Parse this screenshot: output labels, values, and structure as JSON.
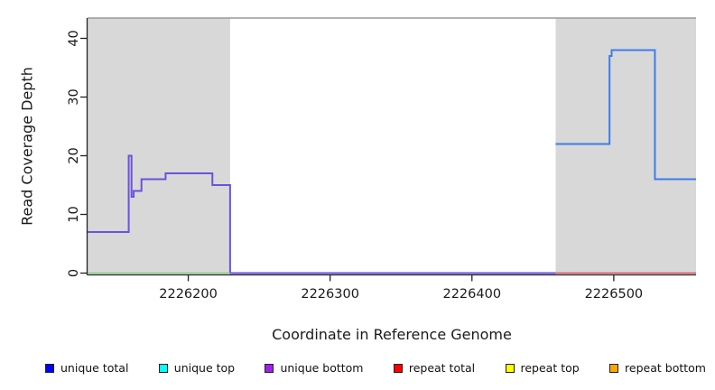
{
  "figure": {
    "xlabel": "Coordinate in Reference Genome",
    "ylabel": "Read Coverage Depth"
  },
  "chart_data": {
    "type": "line",
    "subtype": "step-coverage-plot",
    "title": "",
    "xlabel": "Coordinate in Reference Genome",
    "ylabel": "Read Coverage Depth",
    "xlim": [
      2226129,
      2226558
    ],
    "ylim": [
      0,
      43.5
    ],
    "x_ticks": [
      2226200,
      2226300,
      2226400,
      2226500
    ],
    "y_ticks": [
      0,
      10,
      20,
      30,
      40
    ],
    "grid": false,
    "axis_color": "#222222",
    "top_border_color": "#999999",
    "background_regions": [
      {
        "name": "left-shaded-region",
        "x0": 2226129,
        "x1": 2226229.5,
        "fill": "#d8d8d8"
      },
      {
        "name": "right-shaded-region",
        "x0": 2226459,
        "x1": 2226558,
        "fill": "#d8d8d8"
      }
    ],
    "series": [
      {
        "name": "unique-bottom-coverage-step",
        "color": "#6b52de",
        "width": 2,
        "steps": [
          [
            2226129,
            7
          ],
          [
            2226158,
            20
          ],
          [
            2226160,
            13
          ],
          [
            2226161.5,
            14
          ],
          [
            2226167,
            16
          ],
          [
            2226184,
            17
          ],
          [
            2226217,
            15
          ],
          [
            2226229.5,
            0
          ]
        ],
        "x_end": 2226459
      },
      {
        "name": "unique-total-coverage-step",
        "color": "#3d7cec",
        "width": 2,
        "steps": [
          [
            2226459,
            22
          ],
          [
            2226497,
            37
          ],
          [
            2226498.5,
            38
          ],
          [
            2226529,
            16
          ]
        ],
        "x_end": 2226558
      },
      {
        "name": "left-region-zero-line-green",
        "color": "#7cce7c",
        "width": 1.5,
        "steps": [
          [
            2226129,
            0
          ]
        ],
        "x_end": 2226229.5
      },
      {
        "name": "right-region-zero-line-red",
        "color": "#dd4a64",
        "width": 1.5,
        "steps": [
          [
            2226459,
            0
          ]
        ],
        "x_end": 2226558
      }
    ],
    "legend_position": "bottom",
    "legend": [
      {
        "label": "unique total",
        "color": "#0000ff"
      },
      {
        "label": "unique top",
        "color": "#00ffff"
      },
      {
        "label": "unique bottom",
        "color": "#a020f0"
      },
      {
        "label": "repeat total",
        "color": "#ff0000"
      },
      {
        "label": "repeat top",
        "color": "#ffff00"
      },
      {
        "label": "repeat bottom",
        "color": "#ffa500"
      }
    ]
  }
}
